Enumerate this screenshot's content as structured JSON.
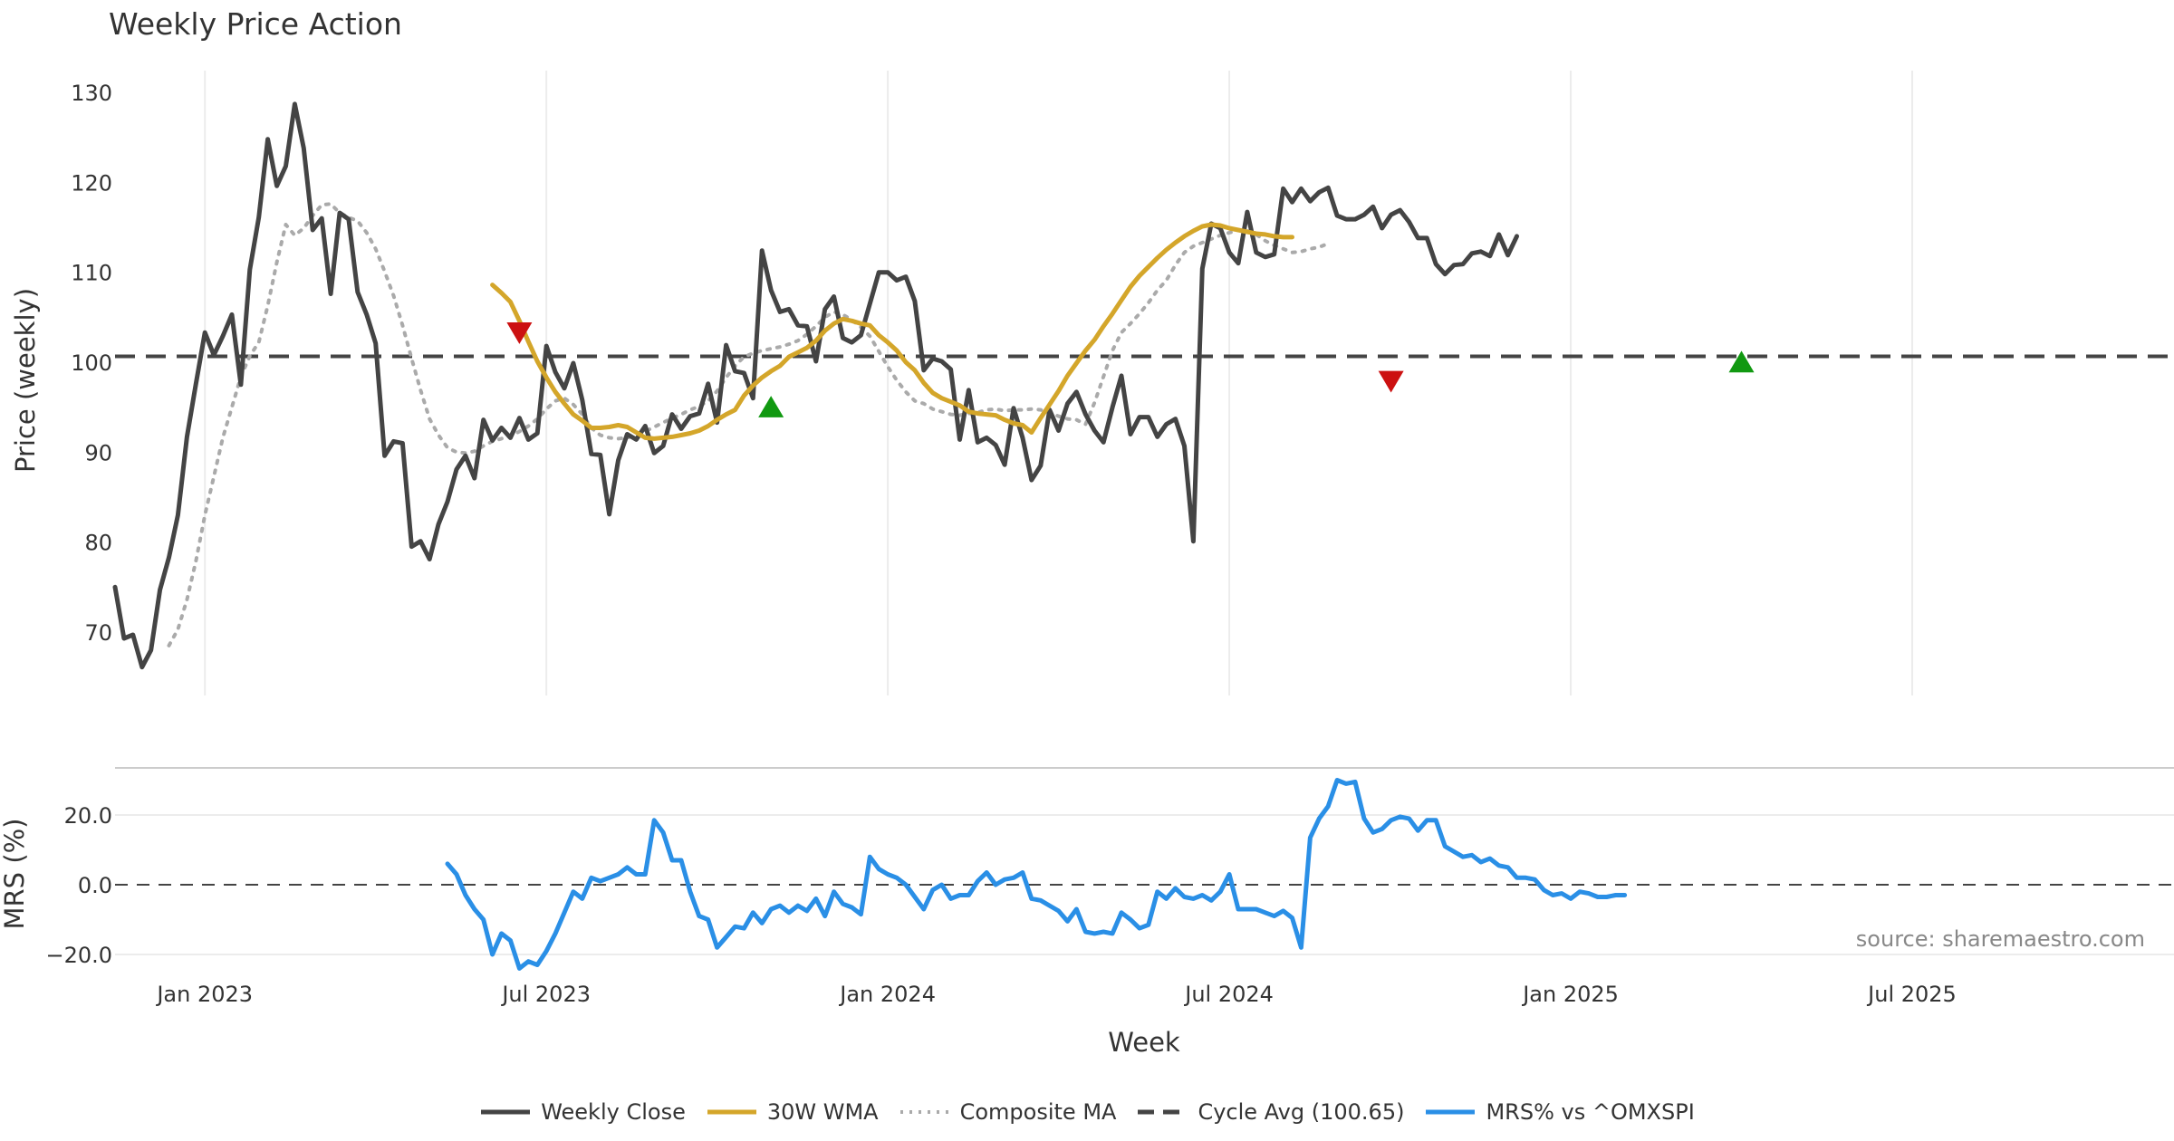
{
  "chart_data": {
    "type": "line",
    "title": "Weekly Price Action",
    "xlabel": "Week",
    "x_ticks": [
      "Jan 2023",
      "Jul 2023",
      "Jan 2024",
      "Jul 2024",
      "Jan 2025",
      "Jul 2025"
    ],
    "x_ticks_week_index": [
      10,
      48,
      86,
      124,
      162,
      200
    ],
    "price_panel": {
      "ylabel": "Price (weekly)",
      "ylim": [
        63,
        131
      ],
      "yticks": [
        70,
        80,
        90,
        100,
        110,
        120,
        130
      ],
      "cycle_avg": 100.65,
      "series": [
        {
          "name": "Weekly Close",
          "color": "#444444",
          "style": "solid",
          "start": 0,
          "values": [
            75.0,
            69.3,
            69.7,
            66.1,
            68.0,
            74.7,
            78.3,
            83.0,
            91.7,
            97.6,
            103.3,
            100.8,
            102.9,
            105.3,
            97.5,
            110.3,
            116.1,
            124.8,
            119.6,
            121.8,
            128.7,
            123.8,
            114.7,
            116.0,
            107.6,
            116.6,
            115.9,
            107.8,
            105.3,
            102.1,
            89.6,
            91.2,
            91.0,
            79.5,
            80.1,
            78.1,
            82.0,
            84.5,
            88.1,
            89.6,
            87.1,
            93.6,
            91.3,
            92.7,
            91.6,
            93.8,
            91.4,
            92.1,
            101.8,
            98.9,
            97.1,
            99.9,
            95.8,
            89.8,
            89.7,
            83.1,
            89.1,
            92.0,
            91.4,
            92.9,
            89.9,
            90.7,
            94.2,
            92.6,
            94.0,
            94.3,
            97.6,
            93.3,
            101.9,
            99.0,
            98.8,
            96.0,
            112.4,
            108.0,
            105.6,
            105.9,
            104.1,
            104.0,
            100.1,
            105.9,
            107.3,
            102.7,
            102.2,
            103.0,
            106.5,
            110.0,
            110.0,
            109.1,
            109.5,
            106.8,
            99.1,
            100.4,
            100.1,
            99.2,
            91.4,
            96.9,
            91.1,
            91.6,
            90.8,
            88.6,
            94.9,
            91.6,
            86.9,
            88.5,
            94.7,
            92.4,
            95.4,
            96.7,
            94.2,
            92.4,
            91.1,
            95.0,
            98.5,
            92.0,
            93.9,
            93.9,
            91.7,
            93.1,
            93.7,
            90.7,
            80.1,
            110.4,
            115.4,
            114.9,
            112.2,
            111.0,
            116.7,
            112.2,
            111.7,
            112.0,
            119.3,
            117.8,
            119.3,
            117.9,
            118.9,
            119.4,
            116.3,
            115.9,
            115.9,
            116.4,
            117.3,
            114.9,
            116.4,
            116.9,
            115.6,
            113.8,
            113.8,
            110.9,
            109.8,
            110.8,
            110.9,
            112.1,
            112.3,
            111.8,
            114.2,
            111.9,
            114.0
          ]
        },
        {
          "name": "30W WMA",
          "color": "#D4A62A",
          "style": "solid",
          "start": 42,
          "values": [
            108.6,
            107.7,
            106.7,
            104.6,
            102.3,
            100.1,
            98.3,
            96.7,
            95.4,
            94.2,
            93.5,
            92.7,
            92.7,
            92.8,
            93.0,
            92.8,
            92.2,
            91.6,
            91.5,
            91.6,
            91.7,
            91.9,
            92.1,
            92.4,
            92.9,
            93.6,
            94.2,
            94.7,
            96.3,
            97.4,
            98.3,
            99.0,
            99.6,
            100.6,
            101.1,
            101.6,
            102.4,
            103.5,
            104.3,
            104.8,
            104.6,
            104.3,
            104.1,
            103.0,
            102.2,
            101.3,
            100.0,
            99.1,
            97.7,
            96.6,
            96.0,
            95.6,
            95.2,
            94.5,
            94.3,
            94.2,
            94.1,
            93.6,
            93.2,
            93.0,
            92.2,
            93.8,
            95.3,
            96.8,
            98.5,
            99.9,
            101.3,
            102.5,
            104.0,
            105.4,
            106.9,
            108.4,
            109.6,
            110.6,
            111.6,
            112.5,
            113.3,
            114.0,
            114.6,
            115.1,
            115.3,
            115.2,
            114.9,
            114.7,
            114.5,
            114.3,
            114.2,
            114.0,
            113.9,
            113.9
          ]
        },
        {
          "name": "Composite MA",
          "color": "#AAAAAA",
          "style": "dotted",
          "start": 6,
          "values": [
            68.5,
            70.3,
            73.6,
            77.9,
            83.0,
            87.3,
            91.6,
            95.0,
            98.4,
            100.7,
            102.2,
            106.3,
            111.1,
            115.3,
            114.1,
            114.9,
            116.3,
            117.5,
            117.6,
            116.6,
            116.1,
            115.7,
            114.4,
            112.6,
            110.1,
            107.4,
            104.1,
            100.4,
            96.9,
            93.7,
            91.9,
            90.5,
            90.0,
            89.9,
            90.1,
            90.7,
            91.2,
            91.5,
            91.8,
            92.3,
            92.9,
            93.7,
            94.8,
            95.7,
            96.0,
            95.3,
            94.2,
            92.7,
            91.9,
            91.6,
            91.5,
            91.6,
            91.9,
            92.3,
            92.8,
            93.3,
            93.8,
            94.2,
            94.7,
            95.1,
            95.7,
            96.8,
            98.3,
            99.6,
            100.6,
            101.0,
            101.3,
            101.5,
            101.7,
            102.0,
            102.4,
            103.1,
            104.0,
            105.0,
            105.6,
            105.3,
            104.7,
            103.9,
            102.9,
            101.2,
            99.5,
            98.0,
            96.7,
            95.7,
            95.4,
            94.8,
            94.5,
            94.2,
            94.1,
            94.3,
            94.4,
            94.7,
            94.8,
            94.6,
            94.7,
            94.7,
            94.8,
            94.7,
            94.4,
            94.0,
            93.7,
            93.6,
            93.1,
            95.5,
            98.4,
            101.3,
            103.3,
            104.3,
            105.4,
            106.6,
            108.0,
            109.1,
            110.8,
            112.2,
            112.9,
            113.3,
            113.7,
            114.1,
            114.4,
            114.7,
            114.6,
            114.2,
            113.5,
            113.0,
            112.6,
            112.2,
            112.3,
            112.6,
            112.8,
            113.2
          ]
        },
        {
          "name": "Cycle Avg (100.65)",
          "color": "#444444",
          "style": "dashed",
          "start": 0,
          "values": []
        }
      ],
      "markers": [
        {
          "type": "sell",
          "week": 45,
          "value": 103.3,
          "color": "#CC1111"
        },
        {
          "type": "buy",
          "week": 73,
          "value": 95.0,
          "color": "#119911"
        },
        {
          "type": "sell",
          "week": 142,
          "value": 97.9,
          "color": "#CC1111"
        },
        {
          "type": "buy",
          "week": 181,
          "value": 100.0,
          "color": "#119911"
        }
      ]
    },
    "mrs_panel": {
      "ylabel": "MRS (%)",
      "ylim": [
        -27,
        35
      ],
      "yticks": [
        -20.0,
        0.0,
        20.0
      ],
      "ytick_labels": [
        "−20.0",
        "0.0",
        "20.0"
      ],
      "series": [
        {
          "name": "MRS% vs ^OMXSPI",
          "color": "#2A8FE6",
          "style": "solid",
          "start": 37,
          "values": [
            6.0,
            3.0,
            -3.0,
            -7.0,
            -10.0,
            -20.0,
            -14.0,
            -16.0,
            -24.0,
            -22.0,
            -23.0,
            -19.0,
            -14.0,
            -8.0,
            -2.0,
            -4.0,
            2.0,
            1.0,
            2.0,
            3.0,
            5.0,
            3.0,
            3.0,
            18.5,
            15.0,
            7.0,
            7.0,
            -2.0,
            -9.0,
            -10.0,
            -18.0,
            -15.0,
            -12.0,
            -12.5,
            -8.0,
            -11.0,
            -7.0,
            -6.0,
            -8.0,
            -6.0,
            -7.5,
            -4.0,
            -9.0,
            -2.0,
            -5.5,
            -6.5,
            -8.5,
            8.0,
            4.5,
            3.0,
            2.0,
            0.0,
            -3.5,
            -7.0,
            -1.5,
            0.0,
            -4.0,
            -3.0,
            -3.0,
            1.0,
            3.5,
            0.0,
            1.5,
            2.0,
            3.5,
            -4.0,
            -4.5,
            -6.0,
            -7.5,
            -10.5,
            -7.0,
            -13.5,
            -14.0,
            -13.5,
            -14.0,
            -8.0,
            -10.0,
            -12.5,
            -11.5,
            -2.0,
            -4.0,
            -1.0,
            -3.5,
            -4.0,
            -3.0,
            -4.5,
            -2.0,
            3.0,
            -7.0,
            -7.0,
            -7.0,
            -8.0,
            -9.0,
            -7.5,
            -9.5,
            -18.0,
            13.5,
            19.0,
            22.5,
            30.0,
            29.0,
            29.5,
            19.0,
            15.0,
            16.0,
            18.5,
            19.5,
            19.0,
            15.5,
            18.5,
            18.5,
            11.0,
            9.5,
            8.0,
            8.5,
            6.5,
            7.5,
            5.5,
            5.0,
            2.0,
            2.0,
            1.5,
            -1.5,
            -3.0,
            -2.5,
            -4.0,
            -2.0,
            -2.5,
            -3.5,
            -3.5,
            -3.0,
            -3.0
          ]
        }
      ]
    },
    "source_note": "source: sharemaestro.com",
    "legend": [
      {
        "label": "Weekly Close",
        "color": "#444444",
        "style": "solid"
      },
      {
        "label": "30W WMA",
        "color": "#D4A62A",
        "style": "solid"
      },
      {
        "label": "Composite MA",
        "color": "#AAAAAA",
        "style": "dotted"
      },
      {
        "label": "Cycle Avg (100.65)",
        "color": "#444444",
        "style": "dashed"
      },
      {
        "label": "MRS% vs ^OMXSPI",
        "color": "#2A8FE6",
        "style": "solid"
      }
    ]
  }
}
